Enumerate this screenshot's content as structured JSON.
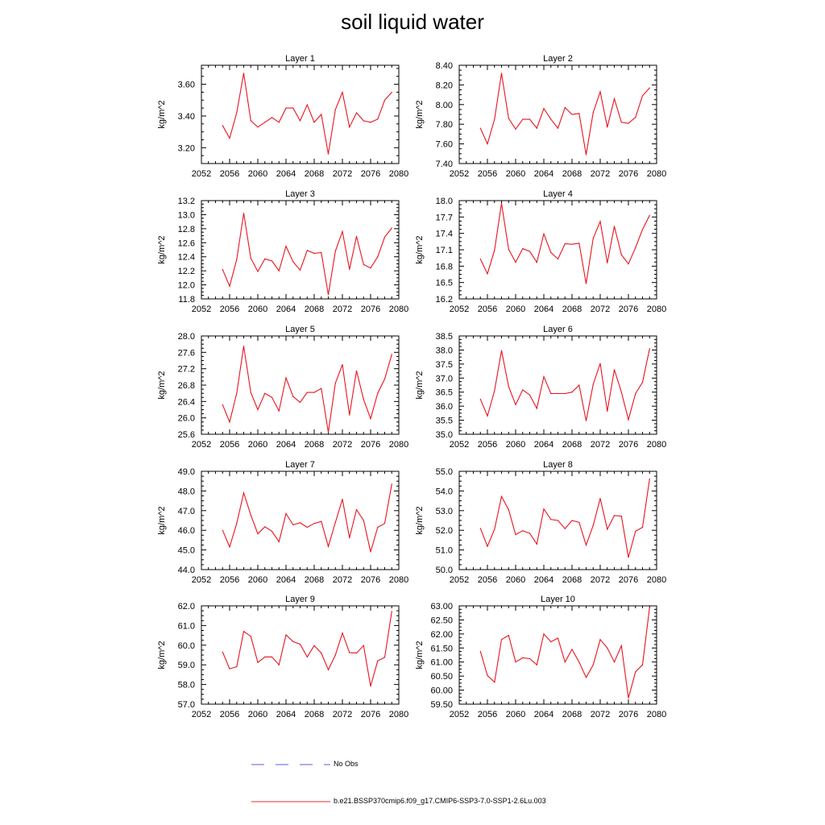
{
  "title": "soil liquid water",
  "legend": [
    {
      "label": "No Obs",
      "color": "#5b5be0",
      "style": "dashed"
    },
    {
      "label": "b.e21.BSSP370cmip6.f09_g17.CMIP6-SSP3-7.0-SSP1-2.6Lu.003",
      "color": "#e03030",
      "style": "solid"
    }
  ],
  "colors": {
    "series": "#e8141e",
    "axis": "#000000"
  },
  "chart_data": [
    {
      "type": "line",
      "title": "Layer 1",
      "ylabel": "kg/m^2",
      "xlim": [
        2052,
        2080
      ],
      "ylim": [
        3.1,
        3.72
      ],
      "xticks": [
        "2052",
        "2056",
        "2060",
        "2064",
        "2068",
        "2072",
        "2076",
        "2080"
      ],
      "yticks": [
        "3.20",
        "3.40",
        "3.60"
      ],
      "ytick_values": [
        3.2,
        3.4,
        3.6
      ],
      "x": [
        2055,
        2056,
        2057,
        2058,
        2059,
        2060,
        2061,
        2062,
        2063,
        2064,
        2065,
        2066,
        2067,
        2068,
        2069,
        2070,
        2071,
        2072,
        2073,
        2074,
        2075,
        2076,
        2077,
        2078,
        2079
      ],
      "series": [
        {
          "values": [
            3.34,
            3.26,
            3.42,
            3.67,
            3.37,
            3.33,
            3.36,
            3.39,
            3.36,
            3.45,
            3.45,
            3.37,
            3.47,
            3.36,
            3.41,
            3.16,
            3.44,
            3.55,
            3.33,
            3.42,
            3.37,
            3.36,
            3.38,
            3.5,
            3.55
          ]
        }
      ]
    },
    {
      "type": "line",
      "title": "Layer 2",
      "ylabel": "kg/m^2",
      "xlim": [
        2052,
        2080
      ],
      "ylim": [
        7.4,
        8.4
      ],
      "xticks": [
        "2052",
        "2056",
        "2060",
        "2064",
        "2068",
        "2072",
        "2076",
        "2080"
      ],
      "yticks": [
        "7.40",
        "7.60",
        "7.80",
        "8.00",
        "8.20",
        "8.40"
      ],
      "ytick_values": [
        7.4,
        7.6,
        7.8,
        8.0,
        8.2,
        8.4
      ],
      "x": [
        2055,
        2056,
        2057,
        2058,
        2059,
        2060,
        2061,
        2062,
        2063,
        2064,
        2065,
        2066,
        2067,
        2068,
        2069,
        2070,
        2071,
        2072,
        2073,
        2074,
        2075,
        2076,
        2077,
        2078,
        2079
      ],
      "series": [
        {
          "values": [
            7.76,
            7.6,
            7.85,
            8.32,
            7.86,
            7.75,
            7.85,
            7.85,
            7.76,
            7.96,
            7.85,
            7.76,
            7.97,
            7.9,
            7.91,
            7.49,
            7.92,
            8.13,
            7.77,
            8.06,
            7.82,
            7.81,
            7.87,
            8.09,
            8.17
          ]
        }
      ]
    },
    {
      "type": "line",
      "title": "Layer 3",
      "ylabel": "kg/m^2",
      "xlim": [
        2052,
        2080
      ],
      "ylim": [
        11.8,
        13.2
      ],
      "xticks": [
        "2052",
        "2056",
        "2060",
        "2064",
        "2068",
        "2072",
        "2076",
        "2080"
      ],
      "yticks": [
        "11.8",
        "12.0",
        "12.2",
        "12.4",
        "12.6",
        "12.8",
        "13.0",
        "13.2"
      ],
      "ytick_values": [
        11.8,
        12.0,
        12.2,
        12.4,
        12.6,
        12.8,
        13.0,
        13.2
      ],
      "x": [
        2055,
        2056,
        2057,
        2058,
        2059,
        2060,
        2061,
        2062,
        2063,
        2064,
        2065,
        2066,
        2067,
        2068,
        2069,
        2070,
        2071,
        2072,
        2073,
        2074,
        2075,
        2076,
        2077,
        2078,
        2079
      ],
      "series": [
        {
          "values": [
            12.22,
            11.98,
            12.36,
            13.02,
            12.38,
            12.19,
            12.37,
            12.34,
            12.2,
            12.55,
            12.33,
            12.21,
            12.49,
            12.45,
            12.46,
            11.86,
            12.48,
            12.76,
            12.22,
            12.69,
            12.29,
            12.24,
            12.4,
            12.68,
            12.81
          ]
        }
      ]
    },
    {
      "type": "line",
      "title": "Layer 4",
      "ylabel": "kg/m^2",
      "xlim": [
        2052,
        2080
      ],
      "ylim": [
        16.2,
        18.0
      ],
      "xticks": [
        "2052",
        "2056",
        "2060",
        "2064",
        "2068",
        "2072",
        "2076",
        "2080"
      ],
      "yticks": [
        "16.2",
        "16.5",
        "16.8",
        "17.1",
        "17.4",
        "17.7",
        "18.0"
      ],
      "ytick_values": [
        16.2,
        16.5,
        16.8,
        17.1,
        17.4,
        17.7,
        18.0
      ],
      "x": [
        2055,
        2056,
        2057,
        2058,
        2059,
        2060,
        2061,
        2062,
        2063,
        2064,
        2065,
        2066,
        2067,
        2068,
        2069,
        2070,
        2071,
        2072,
        2073,
        2074,
        2075,
        2076,
        2077,
        2078,
        2079
      ],
      "series": [
        {
          "values": [
            16.93,
            16.66,
            17.09,
            17.95,
            17.11,
            16.87,
            17.12,
            17.07,
            16.87,
            17.39,
            17.05,
            16.93,
            17.21,
            17.2,
            17.22,
            16.48,
            17.31,
            17.62,
            16.86,
            17.53,
            17.01,
            16.84,
            17.14,
            17.47,
            17.73
          ]
        }
      ]
    },
    {
      "type": "line",
      "title": "Layer 5",
      "ylabel": "kg/m^2",
      "xlim": [
        2052,
        2080
      ],
      "ylim": [
        25.6,
        28.0
      ],
      "xticks": [
        "2052",
        "2056",
        "2060",
        "2064",
        "2068",
        "2072",
        "2076",
        "2080"
      ],
      "yticks": [
        "25.6",
        "26.0",
        "26.4",
        "26.8",
        "27.2",
        "27.6",
        "28.0"
      ],
      "ytick_values": [
        25.6,
        26.0,
        26.4,
        26.8,
        27.2,
        27.6,
        28.0
      ],
      "x": [
        2055,
        2056,
        2057,
        2058,
        2059,
        2060,
        2061,
        2062,
        2063,
        2064,
        2065,
        2066,
        2067,
        2068,
        2069,
        2070,
        2071,
        2072,
        2073,
        2074,
        2075,
        2076,
        2077,
        2078,
        2079
      ],
      "series": [
        {
          "values": [
            26.32,
            25.9,
            26.6,
            27.75,
            26.62,
            26.2,
            26.6,
            26.5,
            26.17,
            26.98,
            26.52,
            26.38,
            26.62,
            26.62,
            26.72,
            25.65,
            26.85,
            27.3,
            26.07,
            27.15,
            26.45,
            25.98,
            26.6,
            26.95,
            27.55
          ]
        }
      ]
    },
    {
      "type": "line",
      "title": "Layer 6",
      "ylabel": "kg/m^2",
      "xlim": [
        2052,
        2080
      ],
      "ylim": [
        35.0,
        38.5
      ],
      "xticks": [
        "2052",
        "2056",
        "2060",
        "2064",
        "2068",
        "2072",
        "2076",
        "2080"
      ],
      "yticks": [
        "35.0",
        "35.5",
        "36.0",
        "36.5",
        "37.0",
        "37.5",
        "38.0",
        "38.5"
      ],
      "ytick_values": [
        35.0,
        35.5,
        36.0,
        36.5,
        37.0,
        37.5,
        38.0,
        38.5
      ],
      "x": [
        2055,
        2056,
        2057,
        2058,
        2059,
        2060,
        2061,
        2062,
        2063,
        2064,
        2065,
        2066,
        2067,
        2068,
        2069,
        2070,
        2071,
        2072,
        2073,
        2074,
        2075,
        2076,
        2077,
        2078,
        2079
      ],
      "series": [
        {
          "values": [
            36.25,
            35.65,
            36.55,
            37.98,
            36.7,
            36.05,
            36.58,
            36.4,
            35.92,
            37.05,
            36.45,
            36.45,
            36.45,
            36.5,
            36.75,
            35.48,
            36.78,
            37.52,
            35.82,
            37.3,
            36.5,
            35.52,
            36.45,
            36.85,
            38.05
          ]
        }
      ]
    },
    {
      "type": "line",
      "title": "Layer 7",
      "ylabel": "kg/m^2",
      "xlim": [
        2052,
        2080
      ],
      "ylim": [
        44.0,
        49.0
      ],
      "xticks": [
        "2052",
        "2056",
        "2060",
        "2064",
        "2068",
        "2072",
        "2076",
        "2080"
      ],
      "yticks": [
        "44.0",
        "45.0",
        "46.0",
        "47.0",
        "48.0",
        "49.0"
      ],
      "ytick_values": [
        44.0,
        45.0,
        46.0,
        47.0,
        48.0,
        49.0
      ],
      "x": [
        2055,
        2056,
        2057,
        2058,
        2059,
        2060,
        2061,
        2062,
        2063,
        2064,
        2065,
        2066,
        2067,
        2068,
        2069,
        2070,
        2071,
        2072,
        2073,
        2074,
        2075,
        2076,
        2077,
        2078,
        2079
      ],
      "series": [
        {
          "values": [
            46.0,
            45.15,
            46.35,
            47.9,
            46.78,
            45.82,
            46.18,
            45.95,
            45.42,
            46.85,
            46.28,
            46.38,
            46.15,
            46.35,
            46.45,
            45.18,
            46.4,
            47.58,
            45.62,
            47.05,
            46.5,
            44.9,
            46.15,
            46.35,
            48.35
          ]
        }
      ]
    },
    {
      "type": "line",
      "title": "Layer 8",
      "ylabel": "kg/m^2",
      "xlim": [
        2052,
        2080
      ],
      "ylim": [
        50.0,
        55.0
      ],
      "xticks": [
        "2052",
        "2056",
        "2060",
        "2064",
        "2068",
        "2072",
        "2076",
        "2080"
      ],
      "yticks": [
        "50.0",
        "51.0",
        "52.0",
        "53.0",
        "54.0",
        "55.0"
      ],
      "ytick_values": [
        50.0,
        51.0,
        52.0,
        53.0,
        54.0,
        55.0
      ],
      "x": [
        2055,
        2056,
        2057,
        2058,
        2059,
        2060,
        2061,
        2062,
        2063,
        2064,
        2065,
        2066,
        2067,
        2068,
        2069,
        2070,
        2071,
        2072,
        2073,
        2074,
        2075,
        2076,
        2077,
        2078,
        2079
      ],
      "series": [
        {
          "values": [
            52.1,
            51.18,
            52.05,
            53.72,
            53.05,
            51.78,
            51.98,
            51.85,
            51.3,
            53.08,
            52.55,
            52.5,
            52.08,
            52.5,
            52.4,
            51.25,
            52.25,
            53.62,
            52.05,
            52.75,
            52.72,
            50.62,
            51.95,
            52.15,
            54.62
          ]
        }
      ]
    },
    {
      "type": "line",
      "title": "Layer 9",
      "ylabel": "kg/m^2",
      "xlim": [
        2052,
        2080
      ],
      "ylim": [
        57.0,
        62.0
      ],
      "xticks": [
        "2052",
        "2056",
        "2060",
        "2064",
        "2068",
        "2072",
        "2076",
        "2080"
      ],
      "yticks": [
        "57.0",
        "58.0",
        "59.0",
        "60.0",
        "61.0",
        "62.0"
      ],
      "ytick_values": [
        57.0,
        58.0,
        59.0,
        60.0,
        61.0,
        62.0
      ],
      "x": [
        2055,
        2056,
        2057,
        2058,
        2059,
        2060,
        2061,
        2062,
        2063,
        2064,
        2065,
        2066,
        2067,
        2068,
        2069,
        2070,
        2071,
        2072,
        2073,
        2074,
        2075,
        2076,
        2077,
        2078,
        2079
      ],
      "series": [
        {
          "values": [
            59.65,
            58.8,
            58.9,
            60.7,
            60.45,
            59.12,
            59.4,
            59.4,
            59.0,
            60.52,
            60.18,
            60.05,
            59.4,
            59.98,
            59.6,
            58.75,
            59.5,
            60.62,
            59.62,
            59.6,
            59.98,
            57.92,
            59.2,
            59.38,
            61.72
          ]
        }
      ]
    },
    {
      "type": "line",
      "title": "Layer 10",
      "ylabel": "kg/m^2",
      "xlim": [
        2052,
        2080
      ],
      "ylim": [
        59.5,
        63.0
      ],
      "xticks": [
        "2052",
        "2056",
        "2060",
        "2064",
        "2068",
        "2072",
        "2076",
        "2080"
      ],
      "yticks": [
        "59.50",
        "60.00",
        "60.50",
        "61.00",
        "61.50",
        "62.00",
        "62.50",
        "63.00"
      ],
      "ytick_values": [
        59.5,
        60.0,
        60.5,
        61.0,
        61.5,
        62.0,
        62.5,
        63.0
      ],
      "x": [
        2055,
        2056,
        2057,
        2058,
        2059,
        2060,
        2061,
        2062,
        2063,
        2064,
        2065,
        2066,
        2067,
        2068,
        2069,
        2070,
        2071,
        2072,
        2073,
        2074,
        2075,
        2076,
        2077,
        2078,
        2079
      ],
      "series": [
        {
          "values": [
            61.38,
            60.52,
            60.28,
            61.8,
            61.95,
            61.0,
            61.15,
            61.12,
            60.9,
            62.0,
            61.72,
            61.85,
            61.0,
            61.45,
            61.0,
            60.45,
            60.9,
            61.8,
            61.5,
            61.0,
            61.58,
            59.72,
            60.65,
            60.9,
            62.95
          ]
        }
      ]
    }
  ]
}
